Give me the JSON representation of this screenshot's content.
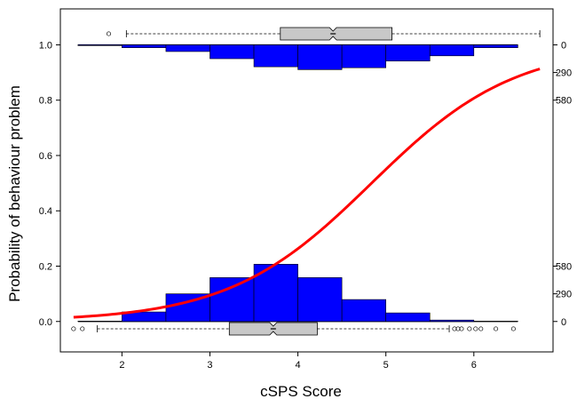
{
  "chart_data": {
    "type": "logistic-regression-histogram",
    "xlabel": "cSPS Score",
    "ylabel": "Probability of behaviour problem",
    "xlim": [
      1.3,
      6.9
    ],
    "ylim": [
      -0.11,
      1.13
    ],
    "x_ticks": [
      2,
      3,
      4,
      5,
      6
    ],
    "y_ticks": [
      0.0,
      0.2,
      0.4,
      0.6,
      0.8,
      1.0
    ],
    "y_tick_labels": [
      "0.0",
      "0.2",
      "0.4",
      "0.6",
      "0.8",
      "1.0"
    ],
    "right_axis_top": {
      "ticks": [
        0,
        290,
        580
      ],
      "max_count": 870
    },
    "right_axis_bottom": {
      "ticks": [
        0,
        290,
        580
      ],
      "max_count": 870
    },
    "histogram_bins": [
      1.5,
      2.0,
      2.5,
      3.0,
      3.5,
      4.0,
      4.5,
      5.0,
      5.5,
      6.0,
      6.5
    ],
    "hist_no_problem_counts": [
      3,
      100,
      290,
      460,
      600,
      460,
      230,
      90,
      15,
      2
    ],
    "hist_problem_counts": [
      8,
      30,
      70,
      145,
      230,
      260,
      240,
      170,
      115,
      30
    ],
    "fitted_curve": {
      "intercept": -5.95,
      "slope": 1.23,
      "x_range": [
        1.45,
        6.75
      ]
    },
    "boxplot_bottom": {
      "whisker_low": 1.72,
      "q1": 3.22,
      "median": 3.72,
      "q3": 4.22,
      "whisker_high": 5.72,
      "outliers": [
        1.45,
        1.55,
        5.78,
        5.82,
        5.86,
        5.95,
        6.02,
        6.08,
        6.25,
        6.45
      ]
    },
    "boxplot_top": {
      "whisker_low": 2.05,
      "q1": 3.8,
      "median": 4.4,
      "q3": 5.07,
      "whisker_high": 6.75,
      "outliers": [
        1.85
      ]
    },
    "colors": {
      "bars": "#0000ff",
      "curve": "#ff0000",
      "box_fill": "#c8c8c8",
      "axis": "#000000"
    }
  }
}
